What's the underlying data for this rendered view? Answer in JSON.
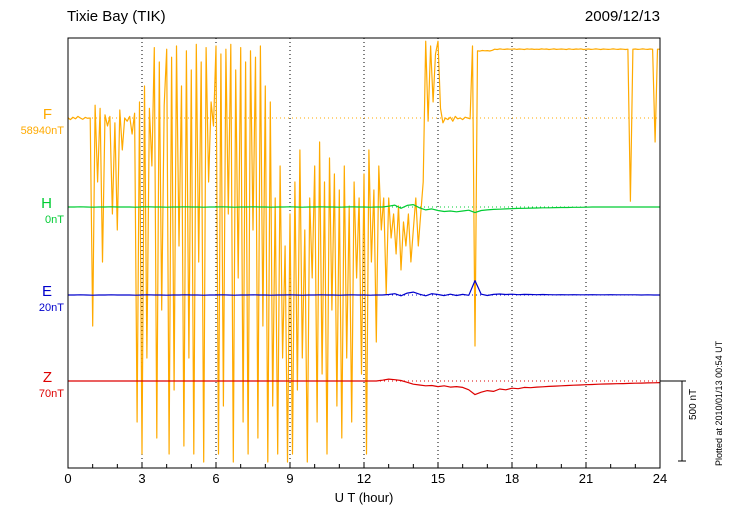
{
  "header": {
    "title": "Tixie Bay (TIK)",
    "date": "2009/12/13"
  },
  "axis": {
    "xlabel": "U T (hour)",
    "ticks": [
      0,
      3,
      6,
      9,
      12,
      15,
      18,
      21,
      24
    ],
    "xmin": 0,
    "xmax": 24
  },
  "scalebar": {
    "label": "500 nT",
    "nT": 500
  },
  "footnote": "Plotted at 2010/01/13 00:54 UT",
  "components": [
    {
      "key": "F",
      "label": "F",
      "baseline_label": "58940nT",
      "color": "#FFAA00"
    },
    {
      "key": "H",
      "label": "H",
      "baseline_label": "0nT",
      "color": "#00CC33"
    },
    {
      "key": "E",
      "label": "E",
      "baseline_label": "20nT",
      "color": "#0000CC"
    },
    {
      "key": "Z",
      "label": "Z",
      "baseline_label": "70nT",
      "color": "#DD0000"
    }
  ],
  "chart_data": {
    "type": "line",
    "title": "Tixie Bay (TIK) magnetogram 2009/12/13",
    "xlabel": "U T (hour)",
    "ylabel": "",
    "x_range": [
      0,
      24
    ],
    "grid": "dotted vertical every 3 h, dotted colored baseline per component",
    "legend_position": "left margin (F, H, E, Z with baseline values)",
    "units_note": "values are nT offsets from each component baseline; 500 nT scale bar at right",
    "series": [
      {
        "name": "F",
        "baseline": "58940nT",
        "x_start": 0,
        "x_step": 0.1,
        "values": [
          0,
          -10,
          5,
          -5,
          10,
          0,
          -8,
          4,
          -2,
          0,
          -1300,
          80,
          -400,
          60,
          -900,
          20,
          -50,
          10,
          -600,
          -30,
          -700,
          50,
          -200,
          0,
          -20,
          10,
          -100,
          30,
          -1900,
          100,
          -2100,
          200,
          -1500,
          60,
          -300,
          440,
          -2000,
          350,
          -1200,
          80,
          430,
          -2100,
          380,
          -1700,
          450,
          -800,
          200,
          -2050,
          420,
          -1500,
          300,
          -2100,
          460,
          -900,
          350,
          -2150,
          440,
          -400,
          100,
          -50,
          450,
          -2100,
          400,
          -1800,
          430,
          -600,
          460,
          -2150,
          300,
          -1000,
          440,
          -1900,
          350,
          -2100,
          420,
          -700,
          380,
          -2000,
          450,
          -1300,
          200,
          -2150,
          100,
          -1800,
          -500,
          -2100,
          -300,
          -1500,
          -800,
          -2150,
          -600,
          -2100,
          -400,
          -1700,
          -200,
          -1500,
          -700,
          -2150,
          -500,
          -1000,
          -300,
          -1900,
          -150,
          -1600,
          -400,
          -2100,
          -250,
          -1200,
          -350,
          -1800,
          -450,
          -2000,
          -300,
          -1500,
          -550,
          -1900,
          -400,
          -1000,
          -500,
          -1600,
          -350,
          -2100,
          -200,
          -900,
          -450,
          -1400,
          -300,
          -700,
          -500,
          -1100,
          -500,
          -750,
          -600,
          -850,
          -550,
          -950,
          -650,
          -800,
          -600,
          -900,
          -700,
          -500,
          -800,
          -600,
          -400,
          480,
          -20,
          450,
          100,
          400,
          480,
          60,
          -30,
          0,
          -10,
          5,
          -20,
          10,
          -5,
          0,
          -10,
          5,
          0,
          -5,
          450,
          -1425,
          420,
          418,
          422,
          420,
          421,
          419,
          423,
          430,
          428,
          432,
          430,
          429,
          431,
          430,
          430,
          432,
          429,
          431,
          430,
          428,
          432,
          430,
          431,
          429,
          430,
          429,
          432,
          430,
          431,
          428,
          430,
          432,
          429,
          430,
          431,
          430,
          428,
          432,
          430,
          429,
          431,
          430,
          432,
          428,
          430,
          431,
          429,
          430,
          432,
          430,
          428,
          431,
          430,
          429,
          430,
          432,
          430,
          429,
          431,
          430,
          428,
          430,
          -520,
          430,
          431,
          429,
          430,
          432,
          430,
          429,
          431,
          430,
          -150,
          430,
          430
        ]
      },
      {
        "name": "H",
        "baseline": "0nT",
        "x_start": 0,
        "x_step": 0.25,
        "values": [
          0,
          0,
          1,
          0,
          -1,
          0,
          0,
          1,
          0,
          0,
          0,
          -1,
          0,
          1,
          0,
          0,
          -1,
          0,
          0,
          1,
          0,
          0,
          -1,
          0,
          0,
          1,
          0,
          -1,
          0,
          0,
          1,
          0,
          0,
          -1,
          0,
          0,
          1,
          0,
          -1,
          0,
          0,
          1,
          0,
          0,
          -1,
          0,
          1,
          0,
          0,
          -1,
          0,
          0,
          5,
          12,
          -8,
          10,
          15,
          -5,
          -18,
          -12,
          -22,
          -28,
          -25,
          -30,
          -25,
          -20,
          -35,
          -22,
          -18,
          -15,
          -14,
          -12,
          -10,
          -9,
          -8,
          -7,
          -6,
          -5,
          -5,
          -4,
          -3,
          -3,
          -2,
          -2,
          -1,
          0,
          0,
          0,
          0,
          0,
          0,
          0,
          0,
          0,
          0,
          0,
          0
        ]
      },
      {
        "name": "E",
        "baseline": "20nT",
        "x_start": 0,
        "x_step": 0.25,
        "values": [
          0,
          0,
          1,
          0,
          -1,
          0,
          0,
          1,
          0,
          0,
          0,
          -1,
          0,
          1,
          0,
          0,
          -1,
          0,
          0,
          1,
          0,
          0,
          -1,
          0,
          0,
          1,
          0,
          -1,
          0,
          0,
          1,
          0,
          0,
          -1,
          0,
          0,
          1,
          0,
          -1,
          0,
          0,
          1,
          0,
          0,
          -1,
          0,
          1,
          0,
          0,
          -1,
          0,
          0,
          3,
          8,
          -5,
          12,
          18,
          5,
          -5,
          8,
          3,
          -4,
          5,
          -3,
          4,
          -2,
          90,
          5,
          -3,
          4,
          6,
          3,
          5,
          2,
          4,
          3,
          2,
          3,
          2,
          1,
          2,
          1,
          2,
          1,
          1,
          2,
          1,
          1,
          2,
          1,
          1,
          1,
          1,
          0,
          1,
          0,
          0
        ]
      },
      {
        "name": "Z",
        "baseline": "70nT",
        "x_start": 0,
        "x_step": 0.25,
        "values": [
          0,
          0,
          0,
          0,
          0,
          0,
          0,
          0,
          0,
          0,
          0,
          0,
          0,
          0,
          0,
          0,
          0,
          0,
          0,
          0,
          0,
          0,
          0,
          0,
          0,
          0,
          0,
          0,
          0,
          0,
          0,
          0,
          0,
          0,
          0,
          0,
          0,
          0,
          0,
          0,
          0,
          0,
          0,
          0,
          0,
          0,
          0,
          0,
          0,
          0,
          0,
          5,
          12,
          8,
          3,
          -8,
          -20,
          -25,
          -30,
          -28,
          -35,
          -30,
          -38,
          -35,
          -40,
          -55,
          -85,
          -70,
          -60,
          -65,
          -50,
          -55,
          -45,
          -48,
          -40,
          -42,
          -38,
          -36,
          -34,
          -32,
          -30,
          -28,
          -26,
          -25,
          -23,
          -22,
          -20,
          -19,
          -18,
          -17,
          -16,
          -15,
          -14,
          -13,
          -12,
          -11,
          -10
        ]
      }
    ]
  }
}
